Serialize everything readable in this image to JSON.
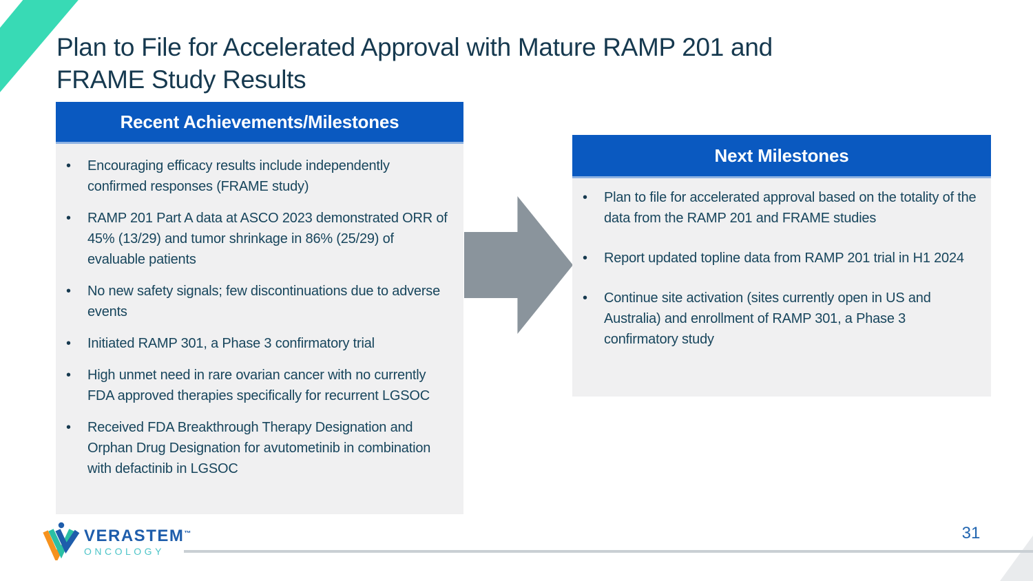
{
  "slide": {
    "title_line1": "Plan to File for Accelerated Approval with Mature RAMP 201 and",
    "title_line2": "FRAME Study Results",
    "page_number": "31"
  },
  "left_panel": {
    "header": "Recent Achievements/Milestones",
    "bullets": [
      "Encouraging efficacy results include independently confirmed responses (FRAME study)",
      "RAMP 201 Part A data at ASCO 2023 demonstrated ORR of 45% (13/29) and tumor shrinkage in 86% (25/29) of evaluable patients",
      "No new safety signals; few discontinuations due to adverse events",
      "Initiated RAMP 301, a Phase 3 confirmatory trial",
      "High unmet need in rare ovarian cancer with no currently FDA approved therapies specifically for recurrent LGSOC",
      "Received FDA Breakthrough Therapy Designation and Orphan Drug Designation for avutometinib in combination with defactinib in LGSOC"
    ]
  },
  "right_panel": {
    "header": "Next Milestones",
    "bullets": [
      "Plan to file for accelerated approval based on the totality of the data from the RAMP 201 and FRAME studies",
      "Report updated topline data from RAMP 201 trial in H1 2024",
      "Continue site activation (sites currently open in US and Australia) and enrollment of RAMP 301, a Phase 3 confirmatory study"
    ]
  },
  "footer": {
    "logo_name": "VERASTEM",
    "logo_trademark": "™",
    "logo_subtitle": "ONCOLOGY"
  },
  "icons": {
    "big_arrow": "right-arrow-icon",
    "teal_corner": "teal-diagonal-accent",
    "gray_corner": "gray-diagonal-accent"
  },
  "colors": {
    "header_blue": "#0a59c0",
    "header_edge_light_blue": "#8fb3e3",
    "panel_background_gray": "#f0f0f1",
    "body_text_navy": "#17455c",
    "title_navy": "#16394f",
    "arrow_gray": "#8a949c",
    "accent_teal": "#38dab5",
    "logo_blue": "#1e5dab",
    "logo_teal": "#4cc4c8",
    "logo_orange": "#f6921e",
    "page_number_blue": "#2165b0",
    "footer_line_gray": "#c9cfd4",
    "corner_triangle_gray": "#e9ebed"
  }
}
